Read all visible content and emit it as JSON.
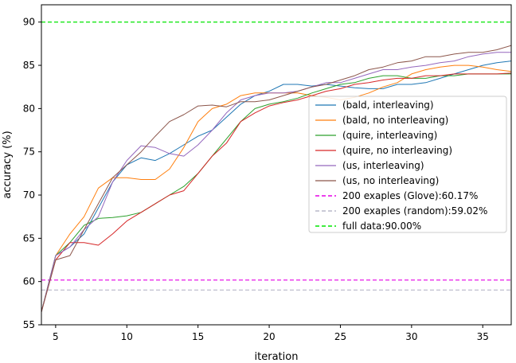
{
  "chart_data": {
    "type": "line",
    "xlabel": "iteration",
    "ylabel": "accuracy (%)",
    "xlim": [
      4,
      37
    ],
    "ylim": [
      55,
      92
    ],
    "xticks": [
      5,
      10,
      15,
      20,
      25,
      30,
      35
    ],
    "yticks": [
      55,
      60,
      65,
      70,
      75,
      80,
      85,
      90
    ],
    "legend_position": "center-right",
    "grid": false,
    "series": [
      {
        "name": "(bald, interleaving)",
        "color": "#1f77b4",
        "x": [
          4,
          5,
          6,
          7,
          8,
          9,
          10,
          11,
          12,
          13,
          14,
          15,
          16,
          17,
          18,
          19,
          20,
          21,
          22,
          23,
          24,
          25,
          26,
          27,
          28,
          29,
          30,
          31,
          32,
          33,
          34,
          35,
          36,
          37
        ],
        "y": [
          56.5,
          63.0,
          64.0,
          65.5,
          68.5,
          71.5,
          73.5,
          74.3,
          74.0,
          74.8,
          75.8,
          76.8,
          77.5,
          79.0,
          80.5,
          81.5,
          82.0,
          82.8,
          82.8,
          82.6,
          82.8,
          82.6,
          82.4,
          82.3,
          82.3,
          82.8,
          82.8,
          83.0,
          83.5,
          84.0,
          84.5,
          85.0,
          85.3,
          85.5
        ]
      },
      {
        "name": "(bald, no interleaving)",
        "color": "#ff7f0e",
        "x": [
          4,
          5,
          6,
          7,
          8,
          9,
          10,
          11,
          12,
          13,
          14,
          15,
          16,
          17,
          18,
          19,
          20,
          21,
          22,
          23,
          24,
          25,
          26,
          27,
          28,
          29,
          30,
          31,
          32,
          33,
          34,
          35,
          36,
          37
        ],
        "y": [
          56.5,
          63.0,
          65.5,
          67.5,
          70.8,
          72.0,
          72.0,
          71.8,
          71.8,
          73.0,
          75.5,
          78.5,
          80.0,
          80.5,
          81.5,
          81.8,
          81.8,
          81.8,
          81.8,
          81.5,
          81.3,
          81.0,
          81.3,
          81.8,
          82.5,
          83.0,
          84.0,
          84.5,
          84.8,
          85.0,
          85.0,
          84.8,
          84.5,
          84.3
        ]
      },
      {
        "name": "(quire, interleaving)",
        "color": "#2ca02c",
        "x": [
          4,
          5,
          6,
          7,
          8,
          9,
          10,
          11,
          12,
          13,
          14,
          15,
          16,
          17,
          18,
          19,
          20,
          21,
          22,
          23,
          24,
          25,
          26,
          27,
          28,
          29,
          30,
          31,
          32,
          33,
          34,
          35,
          36,
          37
        ],
        "y": [
          56.5,
          63.0,
          64.5,
          66.5,
          67.3,
          67.4,
          67.6,
          68.0,
          69.0,
          70.0,
          71.0,
          72.5,
          74.5,
          76.5,
          78.5,
          80.0,
          80.5,
          80.8,
          81.2,
          81.8,
          82.3,
          82.8,
          83.0,
          83.5,
          83.8,
          83.8,
          83.5,
          83.5,
          83.8,
          83.8,
          84.0,
          84.0,
          84.0,
          84.0
        ]
      },
      {
        "name": "(quire, no interleaving)",
        "color": "#d62728",
        "x": [
          4,
          5,
          6,
          7,
          8,
          9,
          10,
          11,
          12,
          13,
          14,
          15,
          16,
          17,
          18,
          19,
          20,
          21,
          22,
          23,
          24,
          25,
          26,
          27,
          28,
          29,
          30,
          31,
          32,
          33,
          34,
          35,
          36,
          37
        ],
        "y": [
          56.5,
          62.5,
          64.5,
          64.5,
          64.2,
          65.5,
          67.0,
          68.0,
          69.0,
          70.0,
          70.5,
          72.5,
          74.5,
          76.0,
          78.5,
          79.5,
          80.3,
          80.7,
          81.0,
          81.5,
          82.0,
          82.3,
          82.8,
          83.0,
          83.3,
          83.5,
          83.5,
          83.8,
          83.8,
          84.0,
          84.0,
          84.0,
          84.0,
          84.1
        ]
      },
      {
        "name": "(us, interleaving)",
        "color": "#9467bd",
        "x": [
          4,
          5,
          6,
          7,
          8,
          9,
          10,
          11,
          12,
          13,
          14,
          15,
          16,
          17,
          18,
          19,
          20,
          21,
          22,
          23,
          24,
          25,
          26,
          27,
          28,
          29,
          30,
          31,
          32,
          33,
          34,
          35,
          36,
          37
        ],
        "y": [
          56.5,
          63.0,
          64.0,
          66.0,
          67.5,
          71.5,
          74.0,
          75.7,
          75.5,
          74.8,
          74.5,
          75.8,
          77.5,
          79.5,
          81.0,
          81.5,
          81.8,
          81.8,
          82.0,
          82.5,
          83.0,
          83.0,
          83.5,
          84.0,
          84.5,
          84.5,
          84.8,
          85.0,
          85.3,
          85.5,
          86.0,
          86.3,
          86.5,
          86.5
        ]
      },
      {
        "name": "(us, no interleaving)",
        "color": "#8c564b",
        "x": [
          4,
          5,
          6,
          7,
          8,
          9,
          10,
          11,
          12,
          13,
          14,
          15,
          16,
          17,
          18,
          19,
          20,
          21,
          22,
          23,
          24,
          25,
          26,
          27,
          28,
          29,
          30,
          31,
          32,
          33,
          34,
          35,
          36,
          37
        ],
        "y": [
          56.5,
          62.5,
          63.0,
          66.0,
          69.0,
          72.0,
          73.5,
          75.0,
          76.8,
          78.5,
          79.3,
          80.3,
          80.4,
          80.2,
          80.8,
          80.8,
          81.0,
          81.5,
          82.0,
          82.5,
          82.8,
          83.3,
          83.8,
          84.5,
          84.8,
          85.3,
          85.5,
          86.0,
          86.0,
          86.3,
          86.5,
          86.5,
          86.8,
          87.3
        ]
      }
    ],
    "reference_lines": [
      {
        "name": "200 exaples (Glove):60.17%",
        "value": 60.17,
        "color": "#e600e6"
      },
      {
        "name": "200 exaples (random):59.02%",
        "value": 59.02,
        "color": "#b8b8c8"
      },
      {
        "name": "full data:90.00%",
        "value": 90.0,
        "color": "#00e600"
      }
    ]
  }
}
